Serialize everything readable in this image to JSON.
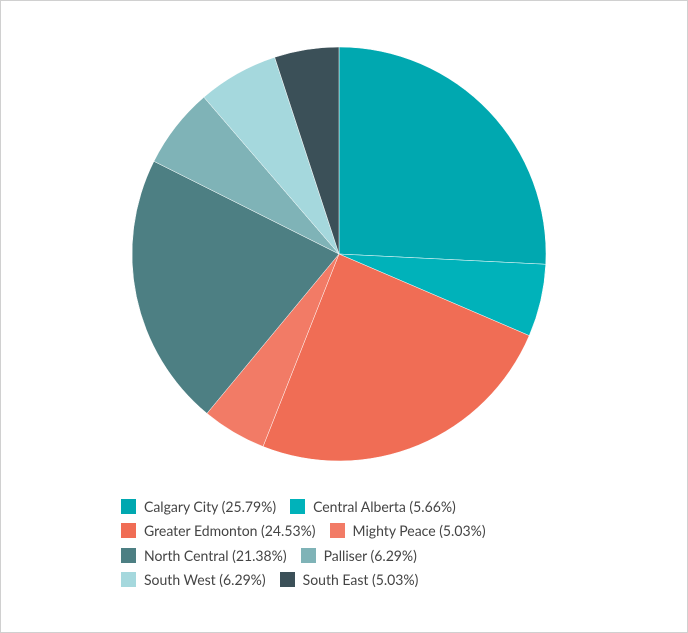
{
  "chart_data": {
    "type": "pie",
    "categories": [
      "Calgary City (25.79%)",
      "Central Alberta (5.66%)",
      "Greater Edmonton (24.53%)",
      "Mighty Peace (5.03%)",
      "North Central (21.38%)",
      "Palliser (6.29%)",
      "South West (6.29%)",
      "South East (5.03%)"
    ],
    "values": [
      25.79,
      5.66,
      24.53,
      5.03,
      21.38,
      6.29,
      6.29,
      5.03
    ],
    "colors": [
      "#00a8b0",
      "#00b2ba",
      "#f06d55",
      "#f27b66",
      "#4d7f83",
      "#7fb3b7",
      "#a5d8dd",
      "#3b5058"
    ]
  }
}
